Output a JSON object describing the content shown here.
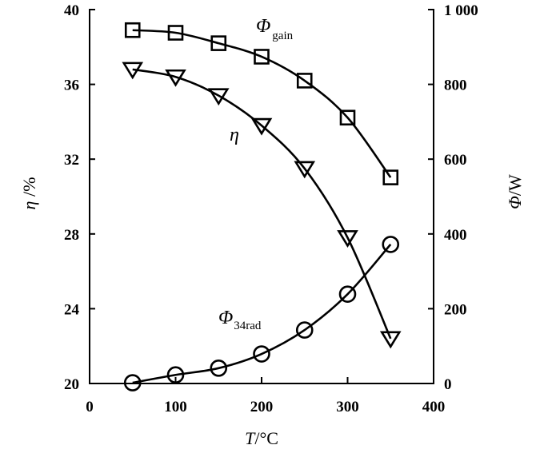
{
  "chart_data": {
    "type": "line",
    "title": "",
    "xlabel": {
      "symbol": "T",
      "unit": "/°C"
    },
    "ylabel_left": {
      "symbol": "η",
      "unit": " /%"
    },
    "ylabel_right": {
      "symbol": "Φ",
      "unit": "/W"
    },
    "xlim": [
      0,
      400
    ],
    "ylim_left": [
      20,
      40
    ],
    "ylim_right": [
      0,
      1000
    ],
    "x_ticks": [
      "0",
      "100",
      "200",
      "300",
      "400"
    ],
    "x_tick_values": [
      0,
      100,
      200,
      300,
      400
    ],
    "y_left_ticks": [
      "20",
      "24",
      "28",
      "32",
      "36",
      "40"
    ],
    "y_left_tick_values": [
      20,
      24,
      28,
      32,
      36,
      40
    ],
    "y_right_ticks": [
      "0",
      "200",
      "400",
      "600",
      "800",
      "1 000"
    ],
    "y_right_tick_values": [
      0,
      200,
      400,
      600,
      800,
      1000
    ],
    "grid": false,
    "x": [
      50,
      100,
      150,
      200,
      250,
      300,
      350
    ],
    "series": [
      {
        "name": "Φgain",
        "label_main": "Φ",
        "label_sub": "gain",
        "axis": "right",
        "marker": "square",
        "values": [
          945,
          938,
          910,
          874,
          810,
          711,
          551
        ]
      },
      {
        "name": "η",
        "label_main": "η",
        "label_sub": "",
        "axis": "left",
        "marker": "triangle-down",
        "values": [
          36.8,
          36.4,
          35.4,
          33.8,
          31.5,
          27.8,
          22.4
        ]
      },
      {
        "name": "Φ34rad",
        "label_main": "Φ",
        "label_sub": "34rad",
        "axis": "right",
        "marker": "circle",
        "values": [
          2,
          23,
          41,
          79,
          143,
          239,
          372
        ]
      }
    ]
  }
}
